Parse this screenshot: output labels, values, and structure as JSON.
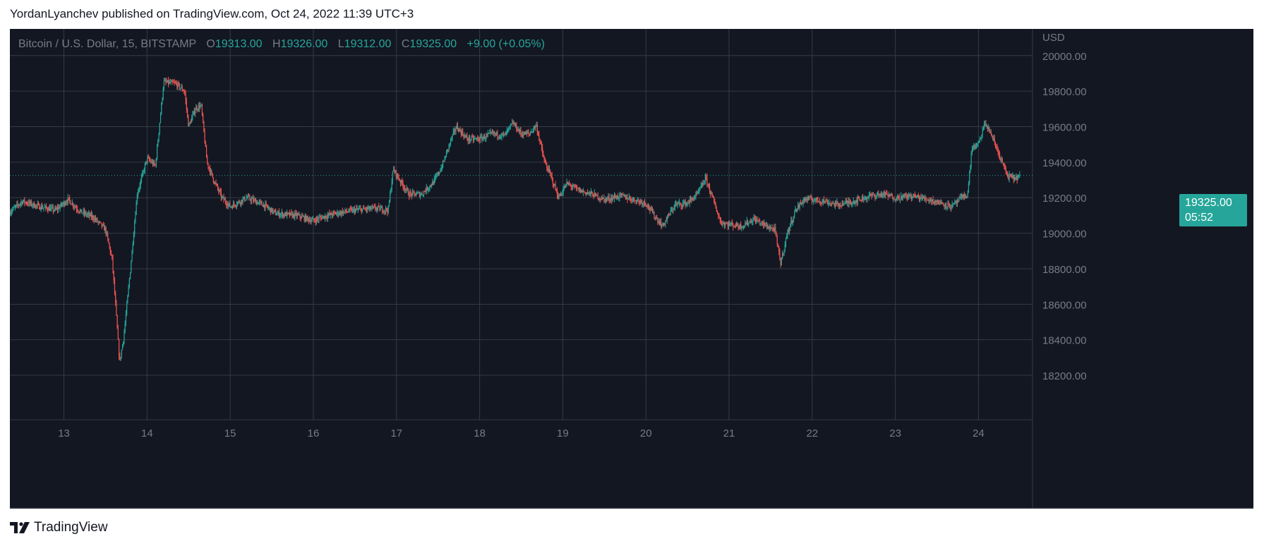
{
  "header": {
    "published_by": "YordanLyanchev published on TradingView.com, Oct 24, 2022 11:39 UTC+3"
  },
  "legend": {
    "symbol": "Bitcoin / U.S. Dollar, 15, BITSTAMP",
    "open_label": "O",
    "open": "19313.00",
    "high_label": "H",
    "high": "19326.00",
    "low_label": "L",
    "low": "19312.00",
    "close_label": "C",
    "close": "19325.00",
    "change": "+9.00 (+0.05%)"
  },
  "price_tag": {
    "price": "19325.00",
    "countdown": "05:52"
  },
  "footer": {
    "logo_icon": "tradingview-logo-icon",
    "brand": "TradingView"
  },
  "colors": {
    "background": "#131722",
    "grid": "#363a45",
    "up": "#26a69a",
    "down": "#ef5350",
    "axis_text": "#787b86"
  },
  "chart_data": {
    "type": "candlestick",
    "timeframe": "15",
    "currency": "USD",
    "ylim": [
      17950,
      20150
    ],
    "y_ticks": [
      20000,
      19800,
      19600,
      19400,
      19200,
      19000,
      18800,
      18600,
      18400,
      18200
    ],
    "y_tick_labels": [
      "20000.00",
      "19800.00",
      "19600.00",
      "19400.00",
      "19200.00",
      "19000.00",
      "18800.00",
      "18600.00",
      "18400.00",
      "18200.00"
    ],
    "x_ticks": [
      13,
      14,
      15,
      16,
      17,
      18,
      19,
      20,
      21,
      22,
      23,
      24
    ],
    "x_tick_labels": [
      "13",
      "14",
      "15",
      "16",
      "17",
      "18",
      "19",
      "20",
      "21",
      "22",
      "23",
      "24"
    ],
    "xlim": [
      12.35,
      24.65
    ],
    "last_price": 19325,
    "grid": true,
    "price_path_day_value": [
      [
        12.35,
        19120
      ],
      [
        12.5,
        19180
      ],
      [
        12.7,
        19150
      ],
      [
        12.9,
        19130
      ],
      [
        13.05,
        19190
      ],
      [
        13.2,
        19120
      ],
      [
        13.35,
        19090
      ],
      [
        13.5,
        19020
      ],
      [
        13.58,
        18850
      ],
      [
        13.62,
        18600
      ],
      [
        13.67,
        18270
      ],
      [
        13.72,
        18420
      ],
      [
        13.8,
        18800
      ],
      [
        13.88,
        19220
      ],
      [
        14.0,
        19420
      ],
      [
        14.1,
        19380
      ],
      [
        14.2,
        19850
      ],
      [
        14.35,
        19840
      ],
      [
        14.45,
        19800
      ],
      [
        14.5,
        19600
      ],
      [
        14.58,
        19700
      ],
      [
        14.65,
        19720
      ],
      [
        14.72,
        19400
      ],
      [
        14.8,
        19300
      ],
      [
        14.9,
        19200
      ],
      [
        15.0,
        19150
      ],
      [
        15.2,
        19200
      ],
      [
        15.4,
        19160
      ],
      [
        15.55,
        19110
      ],
      [
        15.8,
        19100
      ],
      [
        16.0,
        19070
      ],
      [
        16.1,
        19090
      ],
      [
        16.25,
        19110
      ],
      [
        16.5,
        19130
      ],
      [
        16.75,
        19140
      ],
      [
        16.9,
        19130
      ],
      [
        16.96,
        19360
      ],
      [
        17.05,
        19290
      ],
      [
        17.15,
        19220
      ],
      [
        17.3,
        19220
      ],
      [
        17.45,
        19290
      ],
      [
        17.55,
        19380
      ],
      [
        17.65,
        19520
      ],
      [
        17.72,
        19600
      ],
      [
        17.85,
        19530
      ],
      [
        18.0,
        19530
      ],
      [
        18.15,
        19560
      ],
      [
        18.3,
        19550
      ],
      [
        18.4,
        19620
      ],
      [
        18.5,
        19560
      ],
      [
        18.6,
        19560
      ],
      [
        18.68,
        19610
      ],
      [
        18.78,
        19400
      ],
      [
        18.85,
        19330
      ],
      [
        18.95,
        19200
      ],
      [
        19.05,
        19280
      ],
      [
        19.2,
        19240
      ],
      [
        19.35,
        19220
      ],
      [
        19.5,
        19190
      ],
      [
        19.7,
        19210
      ],
      [
        19.85,
        19190
      ],
      [
        20.0,
        19170
      ],
      [
        20.1,
        19100
      ],
      [
        20.2,
        19040
      ],
      [
        20.35,
        19160
      ],
      [
        20.5,
        19170
      ],
      [
        20.62,
        19220
      ],
      [
        20.72,
        19310
      ],
      [
        20.8,
        19200
      ],
      [
        20.9,
        19060
      ],
      [
        21.0,
        19050
      ],
      [
        21.15,
        19040
      ],
      [
        21.3,
        19080
      ],
      [
        21.45,
        19040
      ],
      [
        21.55,
        19020
      ],
      [
        21.62,
        18830
      ],
      [
        21.7,
        19000
      ],
      [
        21.8,
        19130
      ],
      [
        21.9,
        19190
      ],
      [
        22.0,
        19190
      ],
      [
        22.15,
        19180
      ],
      [
        22.3,
        19160
      ],
      [
        22.5,
        19180
      ],
      [
        22.7,
        19210
      ],
      [
        22.85,
        19220
      ],
      [
        23.0,
        19200
      ],
      [
        23.2,
        19210
      ],
      [
        23.4,
        19190
      ],
      [
        23.55,
        19170
      ],
      [
        23.68,
        19150
      ],
      [
        23.8,
        19200
      ],
      [
        23.87,
        19220
      ],
      [
        23.92,
        19480
      ],
      [
        24.0,
        19500
      ],
      [
        24.08,
        19620
      ],
      [
        24.15,
        19560
      ],
      [
        24.25,
        19440
      ],
      [
        24.35,
        19320
      ],
      [
        24.45,
        19310
      ],
      [
        24.5,
        19325
      ]
    ]
  }
}
